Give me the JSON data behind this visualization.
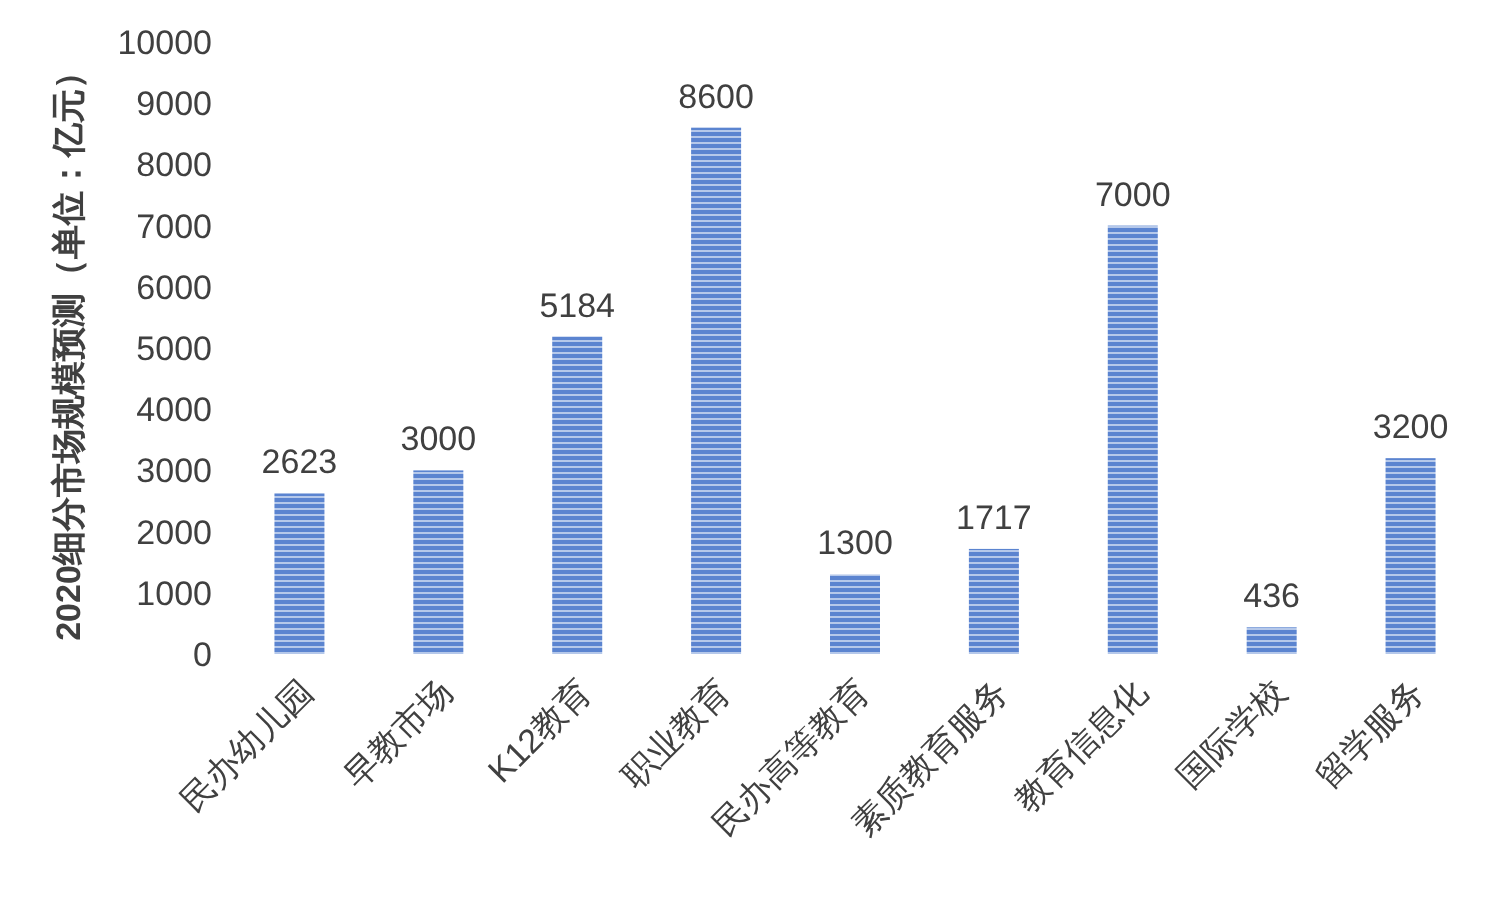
{
  "chart_data": {
    "type": "bar",
    "ylabel": "2020细分市场规模预测（单位：亿元）",
    "categories": [
      "民办幼儿园",
      "早教市场",
      "K12教育",
      "职业教育",
      "民办高等教育",
      "素质教育服务",
      "教育信息化",
      "国际学校",
      "留学服务"
    ],
    "values": [
      2623,
      3000,
      5184,
      8600,
      1300,
      1717,
      7000,
      436,
      3200
    ],
    "color": "#5b84d0",
    "ylim": [
      0,
      10000
    ],
    "yticks": [
      0,
      1000,
      2000,
      3000,
      4000,
      5000,
      6000,
      7000,
      8000,
      9000,
      10000
    ],
    "grid": false,
    "data_labels": true
  }
}
